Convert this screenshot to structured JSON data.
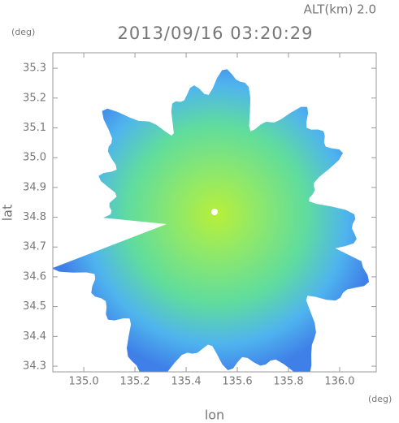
{
  "chart_data": {
    "type": "radar-image",
    "title": "2013/09/16 03:20:29",
    "subtitle": "ALT(km) 2.0",
    "x_label": "lon",
    "y_label": "lat",
    "x_unit": "(deg)",
    "y_unit": "(deg)",
    "xlim": [
      134.879,
      136.143
    ],
    "ylim": [
      34.281,
      35.352
    ],
    "xticks": [
      {
        "value": 135,
        "label": "135.0"
      },
      135.2,
      135.4,
      135.6,
      135.8,
      {
        "value": 136,
        "label": "136.0"
      }
    ],
    "yticks": [
      34.3,
      34.4,
      34.5,
      34.6,
      34.7,
      34.8,
      34.9,
      {
        "value": 35,
        "label": "35.0"
      },
      35.1,
      35.2,
      35.3
    ]
  }
}
